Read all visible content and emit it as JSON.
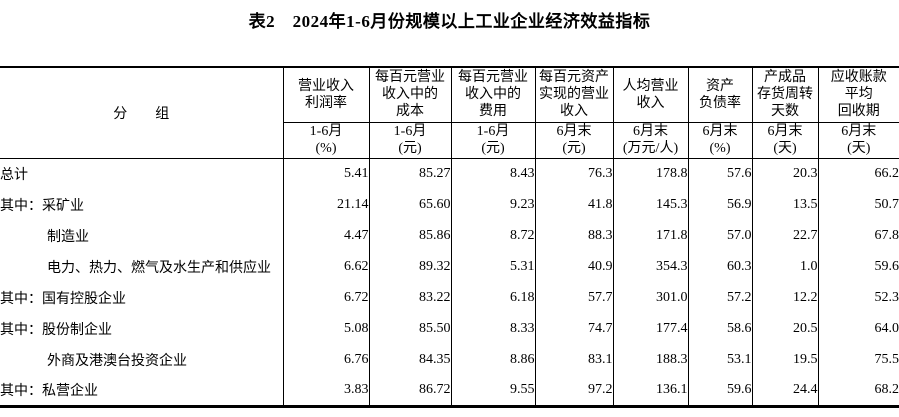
{
  "title": "表2　2024年1-6月份规模以上工业企业经济效益指标",
  "table": {
    "group_header": "分　　组",
    "columns": [
      {
        "label": "营业收入\n利润率",
        "sub": "1-6月\n(%)"
      },
      {
        "label": "每百元营业\n收入中的\n成本",
        "sub": "1-6月\n(元)"
      },
      {
        "label": "每百元营业\n收入中的\n费用",
        "sub": "1-6月\n(元)"
      },
      {
        "label": "每百元资产\n实现的营业\n收入",
        "sub": "6月末\n(元)"
      },
      {
        "label": "人均营业\n收入",
        "sub": "6月末\n(万元/人)"
      },
      {
        "label": "资产\n负债率",
        "sub": "6月末\n(%)"
      },
      {
        "label": "产成品\n存货周转\n天数",
        "sub": "6月末\n(天)"
      },
      {
        "label": "应收账款\n平均\n回收期",
        "sub": "6月末\n(天)"
      }
    ],
    "rows": [
      {
        "label": "总计",
        "indent": false,
        "values": [
          "5.41",
          "85.27",
          "8.43",
          "76.3",
          "178.8",
          "57.6",
          "20.3",
          "66.2"
        ]
      },
      {
        "label": "其中：采矿业",
        "indent": false,
        "values": [
          "21.14",
          "65.60",
          "9.23",
          "41.8",
          "145.3",
          "56.9",
          "13.5",
          "50.7"
        ]
      },
      {
        "label": "制造业",
        "indent": true,
        "values": [
          "4.47",
          "85.86",
          "8.72",
          "88.3",
          "171.8",
          "57.0",
          "22.7",
          "67.8"
        ]
      },
      {
        "label": "电力、热力、燃气及水生产和供应业",
        "indent": true,
        "values": [
          "6.62",
          "89.32",
          "5.31",
          "40.9",
          "354.3",
          "60.3",
          "1.0",
          "59.6"
        ]
      },
      {
        "label": "其中：国有控股企业",
        "indent": false,
        "values": [
          "6.72",
          "83.22",
          "6.18",
          "57.7",
          "301.0",
          "57.2",
          "12.2",
          "52.3"
        ]
      },
      {
        "label": "其中：股份制企业",
        "indent": false,
        "values": [
          "5.08",
          "85.50",
          "8.33",
          "74.7",
          "177.4",
          "58.6",
          "20.5",
          "64.0"
        ]
      },
      {
        "label": "外商及港澳台投资企业",
        "indent": true,
        "values": [
          "6.76",
          "84.35",
          "8.86",
          "83.1",
          "188.3",
          "53.1",
          "19.5",
          "75.5"
        ]
      },
      {
        "label": "其中：私营企业",
        "indent": false,
        "values": [
          "3.83",
          "86.72",
          "9.55",
          "97.2",
          "136.1",
          "59.6",
          "24.4",
          "68.2"
        ]
      }
    ]
  }
}
